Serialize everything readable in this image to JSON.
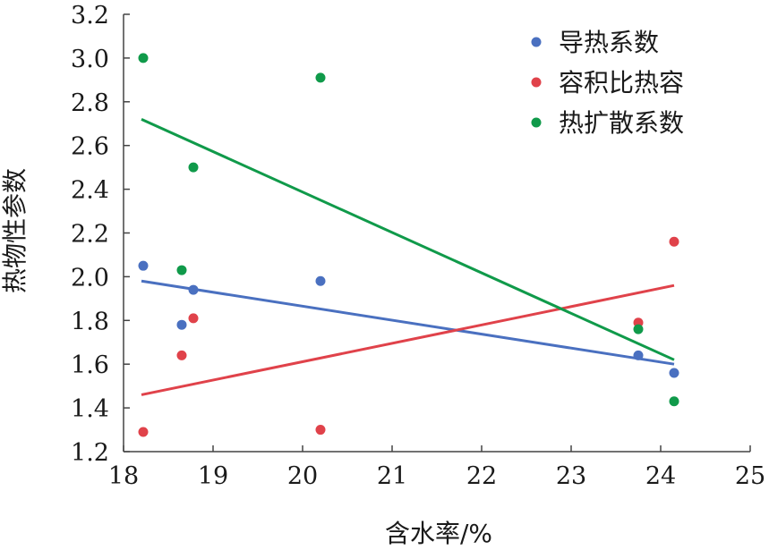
{
  "chart_data": {
    "type": "scatter",
    "xlabel": "含水率/%",
    "ylabel": "热物性参数",
    "xlim": [
      18,
      25
    ],
    "ylim": [
      1.2,
      3.2
    ],
    "x_ticks": [
      "18",
      "19",
      "20",
      "21",
      "22",
      "23",
      "24",
      "25"
    ],
    "y_ticks": [
      "1.2",
      "1.4",
      "1.6",
      "1.8",
      "2.0",
      "2.2",
      "2.4",
      "2.6",
      "2.8",
      "3.0",
      "3.2"
    ],
    "legend_position": "top-right",
    "series": [
      {
        "name": "导热系数",
        "color": "#4a70c0",
        "points": [
          [
            18.22,
            2.05
          ],
          [
            18.65,
            1.78
          ],
          [
            18.78,
            1.94
          ],
          [
            20.2,
            1.98
          ],
          [
            23.75,
            1.64
          ],
          [
            24.15,
            1.56
          ]
        ],
        "trend": [
          [
            18.2,
            1.98
          ],
          [
            24.15,
            1.6
          ]
        ]
      },
      {
        "name": "容积比热容",
        "color": "#e0424a",
        "points": [
          [
            18.22,
            1.29
          ],
          [
            18.65,
            1.64
          ],
          [
            18.78,
            1.81
          ],
          [
            20.2,
            1.3
          ],
          [
            23.75,
            1.79
          ],
          [
            24.15,
            2.16
          ]
        ],
        "trend": [
          [
            18.2,
            1.46
          ],
          [
            24.15,
            1.96
          ]
        ]
      },
      {
        "name": "热扩散系数",
        "color": "#109a4a",
        "points": [
          [
            18.22,
            3.0
          ],
          [
            18.65,
            2.03
          ],
          [
            18.78,
            2.5
          ],
          [
            20.2,
            2.91
          ],
          [
            23.75,
            1.76
          ],
          [
            24.15,
            1.43
          ]
        ],
        "trend": [
          [
            18.2,
            2.72
          ],
          [
            24.15,
            1.62
          ]
        ]
      }
    ]
  }
}
